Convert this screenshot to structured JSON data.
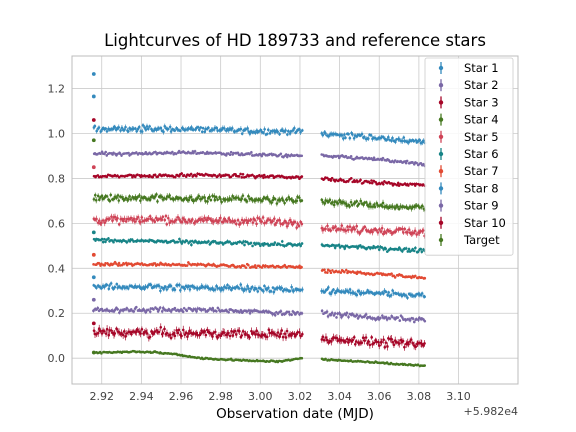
{
  "chart_data": {
    "type": "scatter",
    "title": "Lightcurves of HD 189733 and reference stars",
    "xlabel": "Observation date (MJD)",
    "ylabel": "",
    "x_offset_label": "+5.982e4",
    "xlim": [
      2.905,
      3.13
    ],
    "ylim": [
      -0.115,
      1.345
    ],
    "xticks": [
      2.92,
      2.94,
      2.96,
      2.98,
      3.0,
      3.02,
      3.04,
      3.06,
      3.08,
      3.1
    ],
    "xtick_labels": [
      "2.92",
      "2.94",
      "2.96",
      "2.98",
      "3.00",
      "3.02",
      "3.04",
      "3.06",
      "3.08",
      "3.10"
    ],
    "yticks": [
      0.0,
      0.2,
      0.4,
      0.6,
      0.8,
      1.0,
      1.2
    ],
    "ytick_labels": [
      "0.0",
      "0.2",
      "0.4",
      "0.6",
      "0.8",
      "1.0",
      "1.2"
    ],
    "grid": true,
    "legend_position": "top-right",
    "segments": [
      {
        "start": 2.916,
        "end": 3.021
      },
      {
        "start": 3.031,
        "end": 3.083
      }
    ],
    "series": [
      {
        "name": "Star 1",
        "color": "#348ABD",
        "outliers": [
          1.265,
          1.165
        ],
        "points": [
          [
            2.92,
            1.02
          ],
          [
            2.97,
            1.02
          ],
          [
            3.0,
            1.01
          ],
          [
            3.02,
            1.01
          ],
          [
            3.031,
            1.0
          ],
          [
            3.06,
            0.98
          ],
          [
            3.083,
            0.96
          ]
        ],
        "noise": 0.045
      },
      {
        "name": "Star 2",
        "color": "#7A68A6",
        "outliers": [],
        "points": [
          [
            2.92,
            0.91
          ],
          [
            2.97,
            0.915
          ],
          [
            3.02,
            0.9
          ],
          [
            3.031,
            0.9
          ],
          [
            3.06,
            0.885
          ],
          [
            3.083,
            0.86
          ]
        ],
        "noise": 0.025
      },
      {
        "name": "Star 3",
        "color": "#A60628",
        "outliers": [
          1.06
        ],
        "points": [
          [
            2.92,
            0.81
          ],
          [
            2.97,
            0.815
          ],
          [
            3.02,
            0.805
          ],
          [
            3.031,
            0.8
          ],
          [
            3.06,
            0.78
          ],
          [
            3.083,
            0.77
          ]
        ],
        "noise": 0.025
      },
      {
        "name": "Star 4",
        "color": "#467821",
        "outliers": [
          0.97
        ],
        "points": [
          [
            2.92,
            0.715
          ],
          [
            2.97,
            0.71
          ],
          [
            3.02,
            0.705
          ],
          [
            3.031,
            0.7
          ],
          [
            3.06,
            0.68
          ],
          [
            3.083,
            0.67
          ]
        ],
        "noise": 0.05
      },
      {
        "name": "Star 5",
        "color": "#CF4457",
        "outliers": [
          0.85
        ],
        "points": [
          [
            2.92,
            0.615
          ],
          [
            2.97,
            0.615
          ],
          [
            3.02,
            0.605
          ],
          [
            3.031,
            0.58
          ],
          [
            3.06,
            0.57
          ],
          [
            3.083,
            0.56
          ]
        ],
        "noise": 0.055
      },
      {
        "name": "Star 6",
        "color": "#188487",
        "outliers": [
          0.56
        ],
        "points": [
          [
            2.92,
            0.525
          ],
          [
            2.97,
            0.515
          ],
          [
            3.02,
            0.505
          ],
          [
            3.031,
            0.5
          ],
          [
            3.06,
            0.49
          ],
          [
            3.083,
            0.48
          ]
        ],
        "noise": 0.03
      },
      {
        "name": "Star 7",
        "color": "#E24A33",
        "outliers": [
          0.46
        ],
        "points": [
          [
            2.92,
            0.42
          ],
          [
            2.97,
            0.415
          ],
          [
            3.02,
            0.405
          ],
          [
            3.031,
            0.39
          ],
          [
            3.06,
            0.375
          ],
          [
            3.083,
            0.355
          ]
        ],
        "noise": 0.025
      },
      {
        "name": "Star 8",
        "color": "#348ABD",
        "outliers": [
          0.36
        ],
        "points": [
          [
            2.92,
            0.32
          ],
          [
            2.97,
            0.315
          ],
          [
            3.02,
            0.305
          ],
          [
            3.031,
            0.3
          ],
          [
            3.06,
            0.29
          ],
          [
            3.083,
            0.28
          ]
        ],
        "noise": 0.045
      },
      {
        "name": "Star 9",
        "color": "#7A68A6",
        "outliers": [
          0.26
        ],
        "points": [
          [
            2.92,
            0.215
          ],
          [
            2.97,
            0.215
          ],
          [
            3.02,
            0.2
          ],
          [
            3.031,
            0.2
          ],
          [
            3.06,
            0.18
          ],
          [
            3.083,
            0.17
          ]
        ],
        "noise": 0.035
      },
      {
        "name": "Star 10",
        "color": "#A60628",
        "outliers": [
          0.155
        ],
        "points": [
          [
            2.92,
            0.115
          ],
          [
            2.97,
            0.11
          ],
          [
            3.02,
            0.105
          ],
          [
            3.031,
            0.09
          ],
          [
            3.06,
            0.07
          ],
          [
            3.083,
            0.06
          ]
        ],
        "noise": 0.065
      },
      {
        "name": "Target",
        "color": "#467821",
        "outliers": [
          0.025
        ],
        "points": [
          [
            2.92,
            0.025
          ],
          [
            2.94,
            0.03
          ],
          [
            2.955,
            0.02
          ],
          [
            2.97,
            0.0
          ],
          [
            2.99,
            -0.01
          ],
          [
            3.01,
            -0.015
          ],
          [
            3.02,
            0.0
          ],
          [
            3.031,
            -0.005
          ],
          [
            3.06,
            -0.02
          ],
          [
            3.083,
            -0.035
          ]
        ],
        "noise": 0.012
      }
    ]
  }
}
